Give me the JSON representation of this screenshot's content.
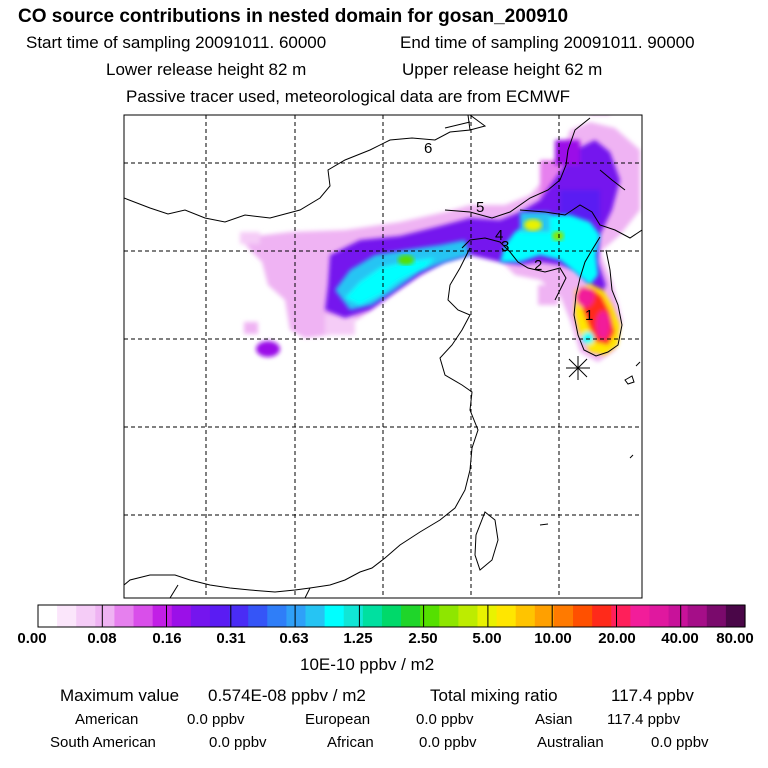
{
  "title": "CO  source contributions in nested domain for gosan_200910",
  "sampling": {
    "start": "Start time of sampling 20091011. 60000",
    "end": "End time of sampling 20091011. 90000"
  },
  "release": {
    "lower": "Lower release height   82 m",
    "upper": "Upper release height   62 m"
  },
  "tracer_note": "Passive tracer used, meteorological data are from ECMWF",
  "trajectory_labels": [
    "1",
    "2",
    "3",
    "4",
    "5",
    "6"
  ],
  "colorbar": {
    "ticks": [
      "0.00",
      "0.08",
      "0.16",
      "0.31",
      "0.63",
      "1.25",
      "2.50",
      "5.00",
      "10.00",
      "20.00",
      "40.00",
      "80.00"
    ],
    "unit": "10E-10 ppbv / m2",
    "colors": [
      "#ffffff",
      "#fbe6fb",
      "#f5ccf7",
      "#efb3f3",
      "#e680ee",
      "#d94fea",
      "#c21fe6",
      "#9b10e8",
      "#7515ee",
      "#5a1cf3",
      "#4a2cf5",
      "#3555f7",
      "#2f7ef8",
      "#2fa0f8",
      "#26c4f3",
      "#00ffff",
      "#11e6d6",
      "#00e0a0",
      "#00d96a",
      "#1fd52a",
      "#55e000",
      "#8ee600",
      "#bdec00",
      "#e9f200",
      "#ffe600",
      "#ffc400",
      "#ffa000",
      "#ff7a00",
      "#ff5000",
      "#ff2a1a",
      "#ff1f5a",
      "#f21d9a",
      "#e0189f",
      "#c8129a",
      "#a50e88",
      "#7a0a6c",
      "#4a0648"
    ]
  },
  "summary": {
    "max_label": "Maximum value",
    "max_value": "0.574E-08 ppbv / m2",
    "total_label": "Total mixing ratio",
    "total_value": "117.4 ppbv"
  },
  "regions": [
    {
      "name": "American",
      "value": "0.0 ppbv"
    },
    {
      "name": "European",
      "value": "0.0 ppbv"
    },
    {
      "name": "Asian",
      "value": "117.4 ppbv"
    },
    {
      "name": "South American",
      "value": "0.0 ppbv"
    },
    {
      "name": "African",
      "value": "0.0 ppbv"
    },
    {
      "name": "Australian",
      "value": "0.0 ppbv"
    }
  ]
}
